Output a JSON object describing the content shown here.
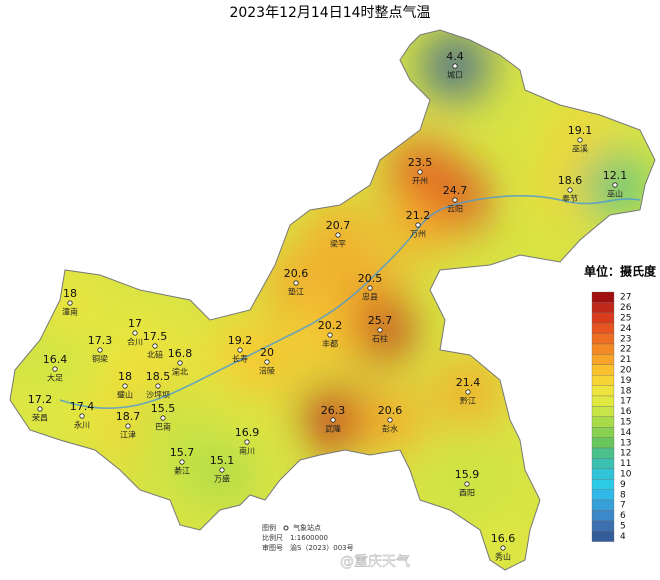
{
  "title": "2023年12月14日14时整点气温",
  "stations": [
    {
      "name": "城口",
      "value": "4.4"
    },
    {
      "name": "巫溪",
      "value": "19.1"
    },
    {
      "name": "开州",
      "value": "23.5"
    },
    {
      "name": "云阳",
      "value": "24.7"
    },
    {
      "name": "奉节",
      "value": "18.6"
    },
    {
      "name": "巫山",
      "value": "12.1"
    },
    {
      "name": "梁平",
      "value": "20.7"
    },
    {
      "name": "万州",
      "value": "21.2"
    },
    {
      "name": "潼南",
      "value": "18"
    },
    {
      "name": "垫江",
      "value": "20.6"
    },
    {
      "name": "忠县",
      "value": "20.5"
    },
    {
      "name": "合川",
      "value": "17"
    },
    {
      "name": "铜梁",
      "value": "17.3"
    },
    {
      "name": "北碚",
      "value": "17.5"
    },
    {
      "name": "渝北",
      "value": "16.8"
    },
    {
      "name": "石柱",
      "value": "25.7"
    },
    {
      "name": "长寿",
      "value": "19.2"
    },
    {
      "name": "涪陵",
      "value": "20"
    },
    {
      "name": "丰都",
      "value": "20.2"
    },
    {
      "name": "大足",
      "value": "16.4"
    },
    {
      "name": "璧山",
      "value": "18"
    },
    {
      "name": "沙坪坝",
      "value": "18.5"
    },
    {
      "name": "黔江",
      "value": "21.4"
    },
    {
      "name": "荣昌",
      "value": "17.2"
    },
    {
      "name": "永川",
      "value": "17.4"
    },
    {
      "name": "江津",
      "value": "18.7"
    },
    {
      "name": "巴南",
      "value": "15.5"
    },
    {
      "name": "武隆",
      "value": "26.3"
    },
    {
      "name": "彭水",
      "value": "20.6"
    },
    {
      "name": "南川",
      "value": "16.9"
    },
    {
      "name": "綦江",
      "value": "15.7"
    },
    {
      "name": "万盛",
      "value": "15.1"
    },
    {
      "name": "酉阳",
      "value": "15.9"
    },
    {
      "name": "秀山",
      "value": "16.6"
    }
  ],
  "legend": {
    "title": "单位：摄氏度",
    "items": [
      {
        "value": 27,
        "color": "#a01010"
      },
      {
        "value": 26,
        "color": "#c0281a"
      },
      {
        "value": 25,
        "color": "#d83c1c"
      },
      {
        "value": 24,
        "color": "#e65420"
      },
      {
        "value": 23,
        "color": "#ee6e22"
      },
      {
        "value": 22,
        "color": "#f38a25"
      },
      {
        "value": 21,
        "color": "#f7a52a"
      },
      {
        "value": 20,
        "color": "#fbc02e"
      },
      {
        "value": 19,
        "color": "#f7d535"
      },
      {
        "value": 18,
        "color": "#efe43e"
      },
      {
        "value": 17,
        "color": "#e0e842"
      },
      {
        "value": 16,
        "color": "#c8e446"
      },
      {
        "value": 15,
        "color": "#a8da4a"
      },
      {
        "value": 14,
        "color": "#88d052"
      },
      {
        "value": 13,
        "color": "#68c65c"
      },
      {
        "value": 12,
        "color": "#4cc08a"
      },
      {
        "value": 11,
        "color": "#3cc0b0"
      },
      {
        "value": 10,
        "color": "#30c4d6"
      },
      {
        "value": 9,
        "color": "#2ccbe8"
      },
      {
        "value": 8,
        "color": "#30b8e8"
      },
      {
        "value": 7,
        "color": "#38a0d8"
      },
      {
        "value": 6,
        "color": "#3c88c8"
      },
      {
        "value": 5,
        "color": "#3c70b0"
      },
      {
        "value": 4,
        "color": "#345c98"
      }
    ]
  },
  "footnote": {
    "legend_label": "图例",
    "legend_item": "气象站点",
    "scale_label": "比例尺",
    "scale": "1:1600000",
    "approval_label": "审图号",
    "approval": "渝S（2023）003号"
  },
  "watermark": "@重庆天气"
}
